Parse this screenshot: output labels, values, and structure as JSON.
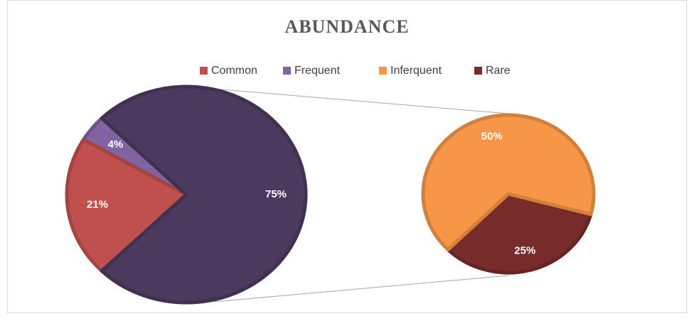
{
  "chart_data": {
    "type": "pie-of-pie",
    "title": "ABUNDANCE",
    "categories": [
      "Common",
      "Frequent",
      "Inferquent",
      "Rare"
    ],
    "values": [
      21,
      4,
      50,
      25
    ],
    "value_labels": [
      "21%",
      "4%",
      "50%",
      "25%"
    ],
    "colors": [
      "#c0504d",
      "#8064a2",
      "#f79646",
      "#772c2a"
    ],
    "secondary_total": 75,
    "secondary_total_label": "75%",
    "secondary_color": "#4b3a5e",
    "legend": "top"
  }
}
